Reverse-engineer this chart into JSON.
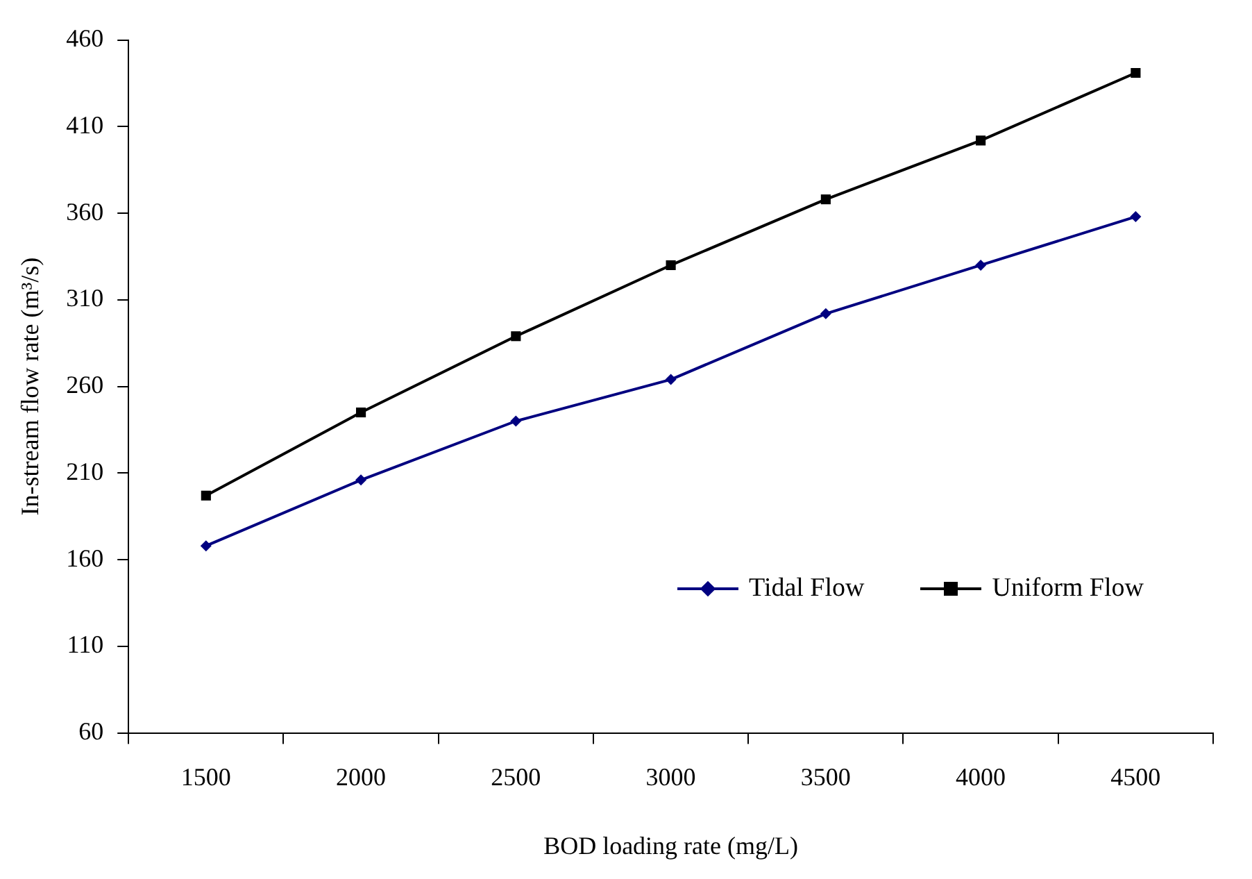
{
  "chart_data": {
    "type": "line",
    "xlabel": "BOD loading rate (mg/L)",
    "ylabel": "In-stream flow rate (m³/s)",
    "categories": [
      "1500",
      "2000",
      "2500",
      "3000",
      "3500",
      "4000",
      "4500"
    ],
    "ylim": [
      60,
      460
    ],
    "yticks": [
      60,
      110,
      160,
      210,
      260,
      310,
      360,
      410,
      460
    ],
    "grid": false,
    "legend": "right",
    "series": [
      {
        "name": "Tidal Flow",
        "color": "#000080",
        "marker": "diamond",
        "values": [
          168,
          206,
          240,
          264,
          302,
          330,
          358
        ]
      },
      {
        "name": "Uniform Flow",
        "color": "#000000",
        "marker": "square",
        "values": [
          197,
          245,
          289,
          330,
          368,
          402,
          441
        ]
      }
    ]
  }
}
